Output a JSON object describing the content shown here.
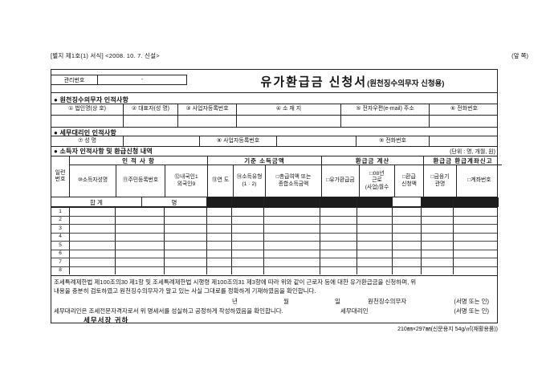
{
  "page": {
    "top_left_note": "[별지 제1호(1) 서식] <2008. 10. 7. 신설>",
    "top_right_note": "(앞 쪽)",
    "paper_spec_note": "210㎜×297㎜(신문용지 54g/㎡(재활용품))"
  },
  "header": {
    "mgmt_label": "관리번호",
    "mgmt_value": "-",
    "title_main": "유가환급금 신청서",
    "title_sub": "(원천징수의무자 신청용)"
  },
  "withholder_section": {
    "label": "● 원천징수의무자 인적사항",
    "headers": [
      "① 법인명(상 호)",
      "② 대표자(성 명)",
      "③ 사업자등록번호",
      "④ 소 재 지",
      "⑤ 전자우편(e-mail) 주소",
      "⑥ 전화번호"
    ],
    "values": [
      "",
      "",
      "",
      "",
      "",
      ""
    ]
  },
  "tax_agent_section": {
    "label": "● 세무대리인 인적사항",
    "cells": [
      "⑦ 성    명",
      "",
      "⑧ 사업자등록번호",
      "",
      "⑨ 전화번호",
      ""
    ]
  },
  "detail_section": {
    "label": "● 소득자 인적사항 및 환급신청 내역",
    "unit_note": "(단위 : 명, 개월, 원)",
    "serial_header": "일련\n번호",
    "group_headers": [
      "인 적 사 항",
      "기준 소득금액",
      "환급금 계산",
      "환급금 환급계좌신고"
    ],
    "column_headers": [
      "⑩소득자성명",
      "⑪주민등록번호",
      "⑫내국인1\n외국인9",
      "⑬연 도",
      "⑭소득유형\n(1 · 2)",
      "□총급여액 또는\n종합소득금액",
      "□유가환급금",
      "□08년\n근로\n(사업)월수",
      "□환급\n신청액",
      "□금융기\n관명",
      "□계좌번호"
    ],
    "sum_row": {
      "label": "합 계",
      "unit": "명"
    },
    "row_numbers": [
      "1",
      "2",
      "3",
      "4",
      "5",
      "6",
      "7",
      "8"
    ]
  },
  "declaration": {
    "line1": "조세특례제한법 제100조의30 제1항 및 조세특례제한법 시행령 제100조의31 제3항에 따라 위와 같이 근로자 등에 대한 유가환급금을 신청하며, 위",
    "line2": "내용을 충분히 검토하였고 원천징수의무자가 알고 있는 사실 그대로를 정확하게 기재하였음을 확인합니다.",
    "date_year": "년",
    "date_month": "월",
    "date_day": "일",
    "withholder_label": "원천징수의무자",
    "sign_note1": "(서명 또는 인)",
    "agent_line": "세무대리인은 조세전문자격자로서 위 명세서를 성실하고 공정하게 작성하였음을 확인합니다.",
    "agent_label": "세무대리인",
    "sign_note2": "(서명 또는 인)",
    "recipient": "세무서장  귀하"
  }
}
